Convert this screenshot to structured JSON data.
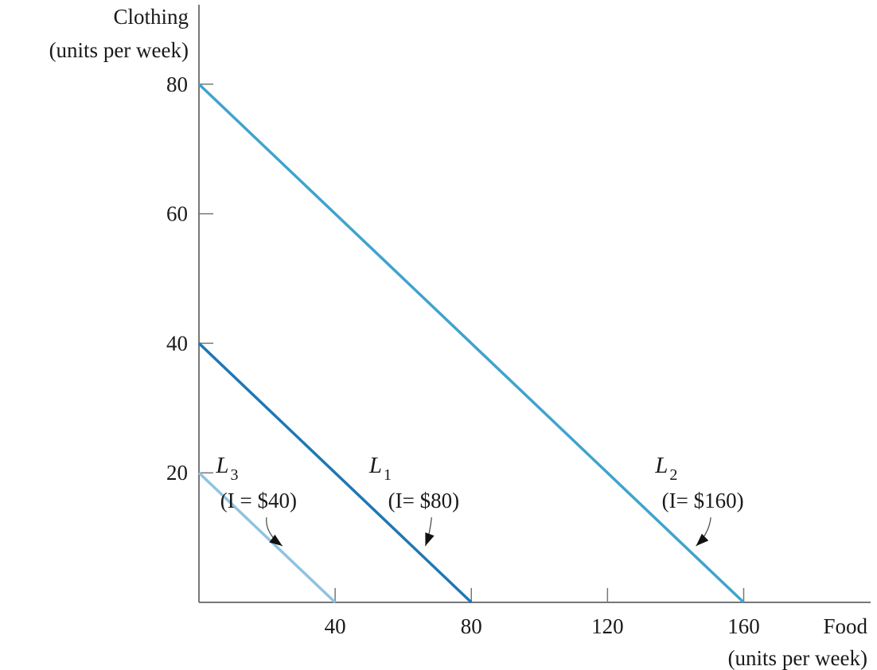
{
  "chart_data": {
    "type": "line",
    "ylabel_line1": "Clothing",
    "ylabel_line2": "(units per week)",
    "xlabel_line1": "Food",
    "xlabel_line2": "(units per week)",
    "xlim": [
      0,
      200
    ],
    "ylim": [
      0,
      90
    ],
    "x_ticks": [
      40,
      80,
      120,
      160
    ],
    "y_ticks": [
      20,
      40,
      60,
      80
    ],
    "grid": false,
    "series": [
      {
        "id": "L3",
        "letter": "L",
        "subscript": "3",
        "income_label": "(I = $40)",
        "color": "#8fc3e0",
        "x": [
          0,
          40
        ],
        "y": [
          20,
          0
        ],
        "label_at": [
          5,
          20
        ],
        "income_at": [
          17.5,
          14.6
        ],
        "arrow_to": [
          24.5,
          8.7
        ]
      },
      {
        "id": "L1",
        "letter": "L",
        "subscript": "1",
        "income_label": "(I= $80)",
        "color": "#1f77b4",
        "x": [
          0,
          80
        ],
        "y": [
          40,
          0
        ],
        "label_at": [
          50,
          20
        ],
        "income_at": [
          66,
          14.6
        ],
        "arrow_to": [
          66.5,
          8.7
        ]
      },
      {
        "id": "L2",
        "letter": "L",
        "subscript": "2",
        "income_label": "(I= $160)",
        "color": "#3fa3cd",
        "x": [
          0,
          160
        ],
        "y": [
          80,
          0
        ],
        "label_at": [
          134,
          20
        ],
        "income_at": [
          148,
          14.6
        ],
        "arrow_to": [
          146,
          8.7
        ]
      }
    ]
  }
}
